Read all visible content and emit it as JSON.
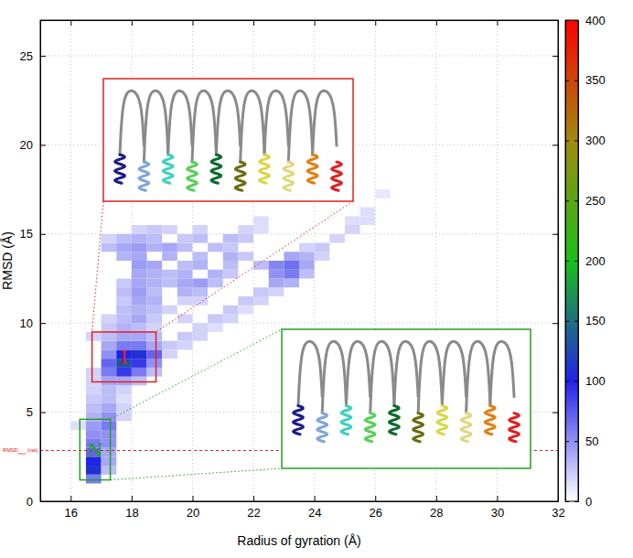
{
  "chart_data": {
    "type": "heatmap",
    "x_label": "Radius of gyration (Å)",
    "y_label": "RMSD (Å)",
    "xlim": [
      15,
      32
    ],
    "ylim": [
      0,
      27
    ],
    "xticks": [
      16,
      18,
      20,
      22,
      24,
      26,
      28,
      30,
      32
    ],
    "yticks": [
      0,
      5,
      10,
      15,
      20,
      25
    ],
    "grid": true,
    "cell_width": 0.5,
    "cell_height": 0.5,
    "cells": [
      [
        16.5,
        1.0,
        60
      ],
      [
        16.5,
        1.5,
        110
      ],
      [
        17.0,
        1.5,
        30
      ],
      [
        16.5,
        2.0,
        100
      ],
      [
        17.0,
        2.0,
        40
      ],
      [
        16.5,
        2.5,
        70
      ],
      [
        17.0,
        2.5,
        40
      ],
      [
        16.5,
        3.0,
        60
      ],
      [
        17.0,
        3.0,
        50
      ],
      [
        16.5,
        3.5,
        50
      ],
      [
        17.0,
        3.5,
        50
      ],
      [
        16.0,
        4.0,
        15
      ],
      [
        16.5,
        4.0,
        45
      ],
      [
        17.0,
        4.0,
        60
      ],
      [
        16.5,
        4.5,
        35
      ],
      [
        17.0,
        4.5,
        50
      ],
      [
        17.5,
        4.5,
        20
      ],
      [
        16.5,
        5.0,
        30
      ],
      [
        17.0,
        5.0,
        40
      ],
      [
        17.5,
        5.0,
        20
      ],
      [
        16.5,
        5.5,
        25
      ],
      [
        17.0,
        5.5,
        30
      ],
      [
        17.5,
        5.5,
        15
      ],
      [
        16.5,
        6.0,
        20
      ],
      [
        17.0,
        6.0,
        30
      ],
      [
        17.5,
        6.0,
        20
      ],
      [
        16.5,
        6.5,
        20
      ],
      [
        17.0,
        6.5,
        40
      ],
      [
        17.5,
        6.5,
        40
      ],
      [
        18.0,
        6.5,
        30
      ],
      [
        16.5,
        7.0,
        20
      ],
      [
        17.0,
        7.0,
        60
      ],
      [
        17.5,
        7.0,
        90
      ],
      [
        18.0,
        7.0,
        60
      ],
      [
        18.5,
        7.0,
        30
      ],
      [
        17.0,
        7.5,
        70
      ],
      [
        17.5,
        7.5,
        130
      ],
      [
        18.0,
        7.5,
        90
      ],
      [
        18.5,
        7.5,
        50
      ],
      [
        17.0,
        8.0,
        50
      ],
      [
        17.5,
        8.0,
        100
      ],
      [
        18.0,
        8.0,
        110
      ],
      [
        18.5,
        8.0,
        70
      ],
      [
        19.0,
        8.0,
        20
      ],
      [
        17.0,
        8.5,
        40
      ],
      [
        17.5,
        8.5,
        60
      ],
      [
        18.0,
        8.5,
        60
      ],
      [
        18.5,
        8.5,
        40
      ],
      [
        19.0,
        8.5,
        25
      ],
      [
        19.5,
        8.5,
        20
      ],
      [
        16.5,
        9.0,
        20
      ],
      [
        17.0,
        9.0,
        30
      ],
      [
        17.5,
        9.0,
        40
      ],
      [
        18.0,
        9.0,
        40
      ],
      [
        18.5,
        9.0,
        30
      ],
      [
        19.5,
        9.0,
        25
      ],
      [
        20.0,
        9.0,
        20
      ],
      [
        17.0,
        9.5,
        25
      ],
      [
        17.5,
        9.5,
        35
      ],
      [
        18.0,
        9.5,
        30
      ],
      [
        18.5,
        9.5,
        20
      ],
      [
        20.0,
        9.5,
        20
      ],
      [
        20.5,
        9.5,
        15
      ],
      [
        17.0,
        10.0,
        20
      ],
      [
        17.5,
        10.0,
        30
      ],
      [
        18.0,
        10.0,
        40
      ],
      [
        18.5,
        10.0,
        25
      ],
      [
        19.5,
        10.0,
        20
      ],
      [
        20.5,
        10.0,
        25
      ],
      [
        21.0,
        10.0,
        20
      ],
      [
        17.5,
        10.5,
        30
      ],
      [
        18.0,
        10.5,
        35
      ],
      [
        18.5,
        10.5,
        30
      ],
      [
        19.0,
        10.5,
        20
      ],
      [
        21.0,
        10.5,
        25
      ],
      [
        21.5,
        10.5,
        15
      ],
      [
        17.5,
        11.0,
        25
      ],
      [
        18.0,
        11.0,
        40
      ],
      [
        18.5,
        11.0,
        35
      ],
      [
        19.5,
        11.0,
        20
      ],
      [
        20.0,
        11.0,
        20
      ],
      [
        21.5,
        11.0,
        25
      ],
      [
        22.0,
        11.0,
        20
      ],
      [
        17.5,
        11.5,
        30
      ],
      [
        18.0,
        11.5,
        45
      ],
      [
        18.5,
        11.5,
        30
      ],
      [
        19.5,
        11.5,
        35
      ],
      [
        20.0,
        11.5,
        30
      ],
      [
        22.0,
        11.5,
        25
      ],
      [
        22.5,
        11.5,
        20
      ],
      [
        17.5,
        12.0,
        25
      ],
      [
        18.0,
        12.0,
        40
      ],
      [
        18.5,
        12.0,
        35
      ],
      [
        19.0,
        12.0,
        30
      ],
      [
        19.5,
        12.0,
        40
      ],
      [
        20.0,
        12.0,
        45
      ],
      [
        20.5,
        12.0,
        30
      ],
      [
        22.5,
        12.0,
        40
      ],
      [
        23.0,
        12.0,
        35
      ],
      [
        18.0,
        12.5,
        40
      ],
      [
        18.5,
        12.5,
        35
      ],
      [
        19.0,
        12.5,
        30
      ],
      [
        19.5,
        12.5,
        35
      ],
      [
        20.5,
        12.5,
        35
      ],
      [
        21.0,
        12.5,
        25
      ],
      [
        22.5,
        12.5,
        50
      ],
      [
        23.0,
        12.5,
        60
      ],
      [
        23.5,
        12.5,
        30
      ],
      [
        18.0,
        13.0,
        45
      ],
      [
        18.5,
        13.0,
        40
      ],
      [
        19.5,
        13.0,
        30
      ],
      [
        20.0,
        13.0,
        35
      ],
      [
        21.0,
        13.0,
        30
      ],
      [
        22.0,
        13.0,
        30
      ],
      [
        22.5,
        13.0,
        55
      ],
      [
        23.0,
        13.0,
        65
      ],
      [
        23.5,
        13.0,
        40
      ],
      [
        17.5,
        13.5,
        35
      ],
      [
        18.0,
        13.5,
        40
      ],
      [
        19.0,
        13.5,
        35
      ],
      [
        20.0,
        13.5,
        30
      ],
      [
        21.0,
        13.5,
        35
      ],
      [
        21.5,
        13.5,
        25
      ],
      [
        23.0,
        13.5,
        40
      ],
      [
        23.5,
        13.5,
        35
      ],
      [
        24.0,
        13.5,
        20
      ],
      [
        17.0,
        14.0,
        30
      ],
      [
        17.5,
        14.0,
        40
      ],
      [
        18.0,
        14.0,
        45
      ],
      [
        18.5,
        14.0,
        35
      ],
      [
        19.0,
        14.0,
        40
      ],
      [
        19.5,
        14.0,
        30
      ],
      [
        20.5,
        14.0,
        30
      ],
      [
        21.0,
        14.0,
        25
      ],
      [
        23.5,
        14.0,
        20
      ],
      [
        24.0,
        14.0,
        25
      ],
      [
        17.0,
        14.5,
        20
      ],
      [
        17.5,
        14.5,
        30
      ],
      [
        18.0,
        14.5,
        35
      ],
      [
        18.5,
        14.5,
        30
      ],
      [
        19.5,
        14.5,
        25
      ],
      [
        20.0,
        14.5,
        30
      ],
      [
        21.0,
        14.5,
        30
      ],
      [
        21.5,
        14.5,
        25
      ],
      [
        24.5,
        14.5,
        20
      ],
      [
        18.0,
        15.0,
        20
      ],
      [
        18.5,
        15.0,
        25
      ],
      [
        19.0,
        15.0,
        20
      ],
      [
        20.0,
        15.0,
        20
      ],
      [
        21.5,
        15.0,
        20
      ],
      [
        22.0,
        15.0,
        15
      ],
      [
        25.0,
        15.0,
        20
      ],
      [
        22.0,
        15.5,
        15
      ],
      [
        25.0,
        15.5,
        15
      ],
      [
        25.5,
        15.5,
        15
      ],
      [
        25.5,
        16.0,
        15
      ],
      [
        26.0,
        17.0,
        10
      ]
    ],
    "colorbar": {
      "lim": [
        0,
        400
      ],
      "ticks": [
        0,
        50,
        100,
        150,
        200,
        250,
        300,
        350,
        400
      ],
      "colors": [
        "#ffffff",
        "#2222e8",
        "#18c018",
        "#a08a10",
        "#ff0000"
      ]
    },
    "reference_line": {
      "y": 2.85,
      "label": "RMSD",
      "label_sub": "max",
      "label_tail": " (nat)",
      "color": "#e02020"
    },
    "regions": [
      {
        "label": "I",
        "color": "#e02020",
        "xlim": [
          16.7,
          18.8
        ],
        "ylim": [
          6.7,
          9.5
        ]
      },
      {
        "label": "N",
        "color": "#22a022",
        "xlim": [
          16.3,
          17.3
        ],
        "ylim": [
          1.2,
          4.6
        ]
      }
    ]
  }
}
